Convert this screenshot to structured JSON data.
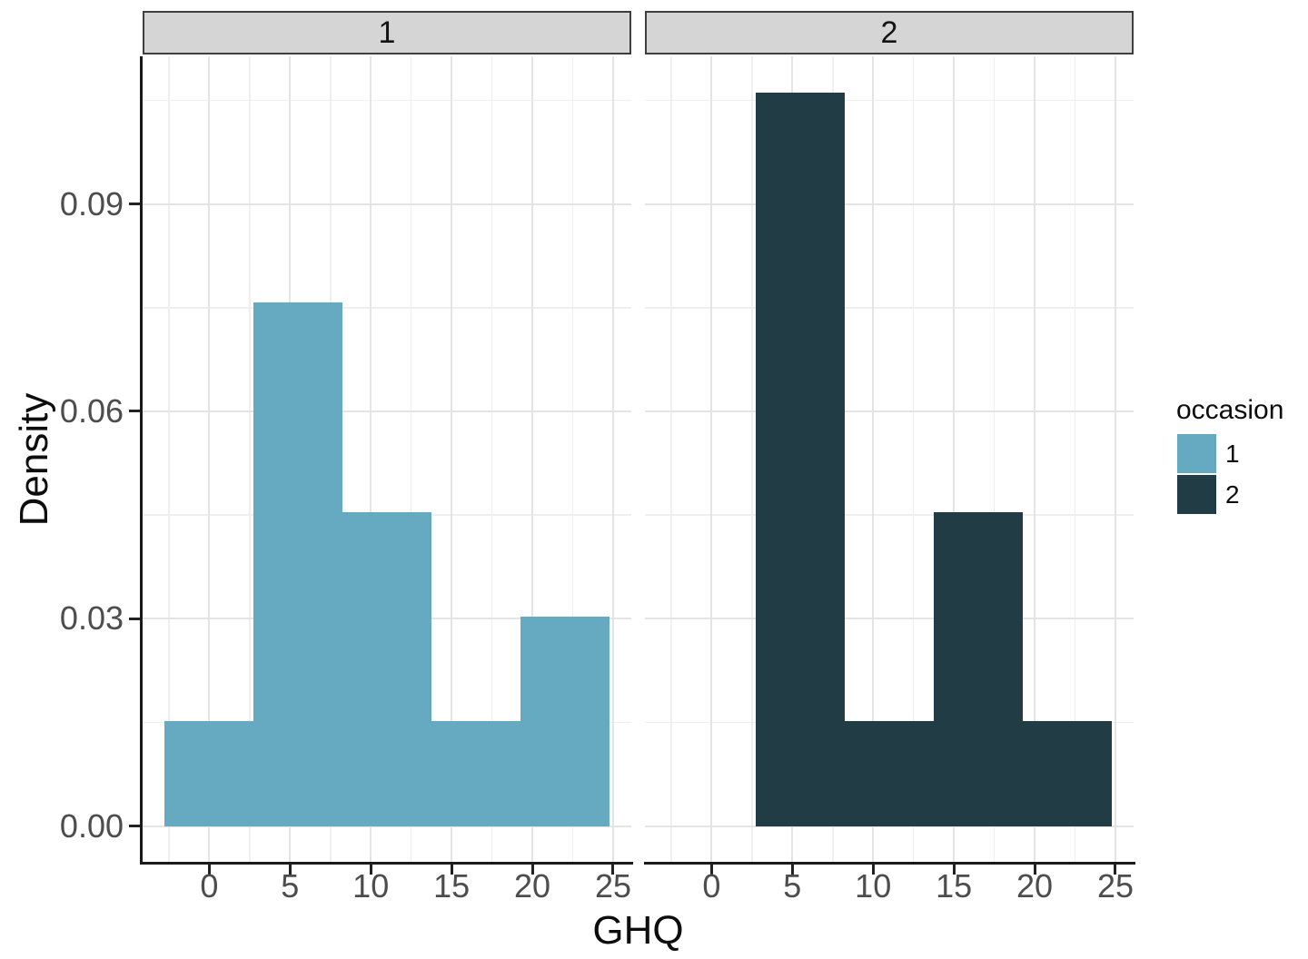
{
  "chart_data": {
    "type": "bar",
    "subtype": "faceted-histogram",
    "faceted_by": "occasion",
    "xlabel": "GHQ",
    "ylabel": "Density",
    "x_range": [
      -4.125,
      26.125
    ],
    "y_range": [
      -0.0053,
      0.11136
    ],
    "binwidth": 5.5,
    "x_ticks": [
      {
        "value": 0,
        "label": "0"
      },
      {
        "value": 5,
        "label": "5"
      },
      {
        "value": 10,
        "label": "10"
      },
      {
        "value": 15,
        "label": "15"
      },
      {
        "value": 20,
        "label": "20"
      },
      {
        "value": 25,
        "label": "25"
      }
    ],
    "y_ticks": [
      {
        "value": 0.0,
        "label": "0.00"
      },
      {
        "value": 0.03,
        "label": "0.03"
      },
      {
        "value": 0.06,
        "label": "0.06"
      },
      {
        "value": 0.09,
        "label": "0.09"
      }
    ],
    "x_minor_breaks": [
      -2.5,
      2.5,
      7.5,
      12.5,
      17.5,
      22.5
    ],
    "y_minor_breaks": [
      0.015,
      0.045,
      0.075,
      0.105
    ],
    "facets": [
      {
        "strip_label": "1",
        "occasion": "1",
        "fill": "#65aac0",
        "bins": [
          {
            "x0": -2.75,
            "x1": 2.75,
            "density": 0.01515
          },
          {
            "x0": 2.75,
            "x1": 8.25,
            "density": 0.07576
          },
          {
            "x0": 8.25,
            "x1": 13.75,
            "density": 0.04545
          },
          {
            "x0": 13.75,
            "x1": 19.25,
            "density": 0.01515
          },
          {
            "x0": 19.25,
            "x1": 24.75,
            "density": 0.0303
          }
        ]
      },
      {
        "strip_label": "2",
        "occasion": "2",
        "fill": "#223c46",
        "bins": [
          {
            "x0": -2.75,
            "x1": 2.75,
            "density": 0
          },
          {
            "x0": 2.75,
            "x1": 8.25,
            "density": 0.10606
          },
          {
            "x0": 8.25,
            "x1": 13.75,
            "density": 0.01515
          },
          {
            "x0": 13.75,
            "x1": 19.25,
            "density": 0.04545
          },
          {
            "x0": 19.25,
            "x1": 24.75,
            "density": 0.01515
          }
        ]
      }
    ],
    "legend": {
      "title": "occasion",
      "position": "right",
      "items": [
        {
          "label": "1",
          "color": "#65aac0"
        },
        {
          "label": "2",
          "color": "#223c46"
        }
      ]
    }
  },
  "colors": {
    "background": "#ffffff",
    "panel_background": "#ffffff",
    "grid_major": "#e4e4e4",
    "grid_minor": "#efefef",
    "strip_fill": "#d5d5d5",
    "strip_border": "#3f3f3f",
    "axis_line": "#1a1a1a",
    "tick_label": "#4d4d4d",
    "title_color": "#0d0d0d"
  }
}
